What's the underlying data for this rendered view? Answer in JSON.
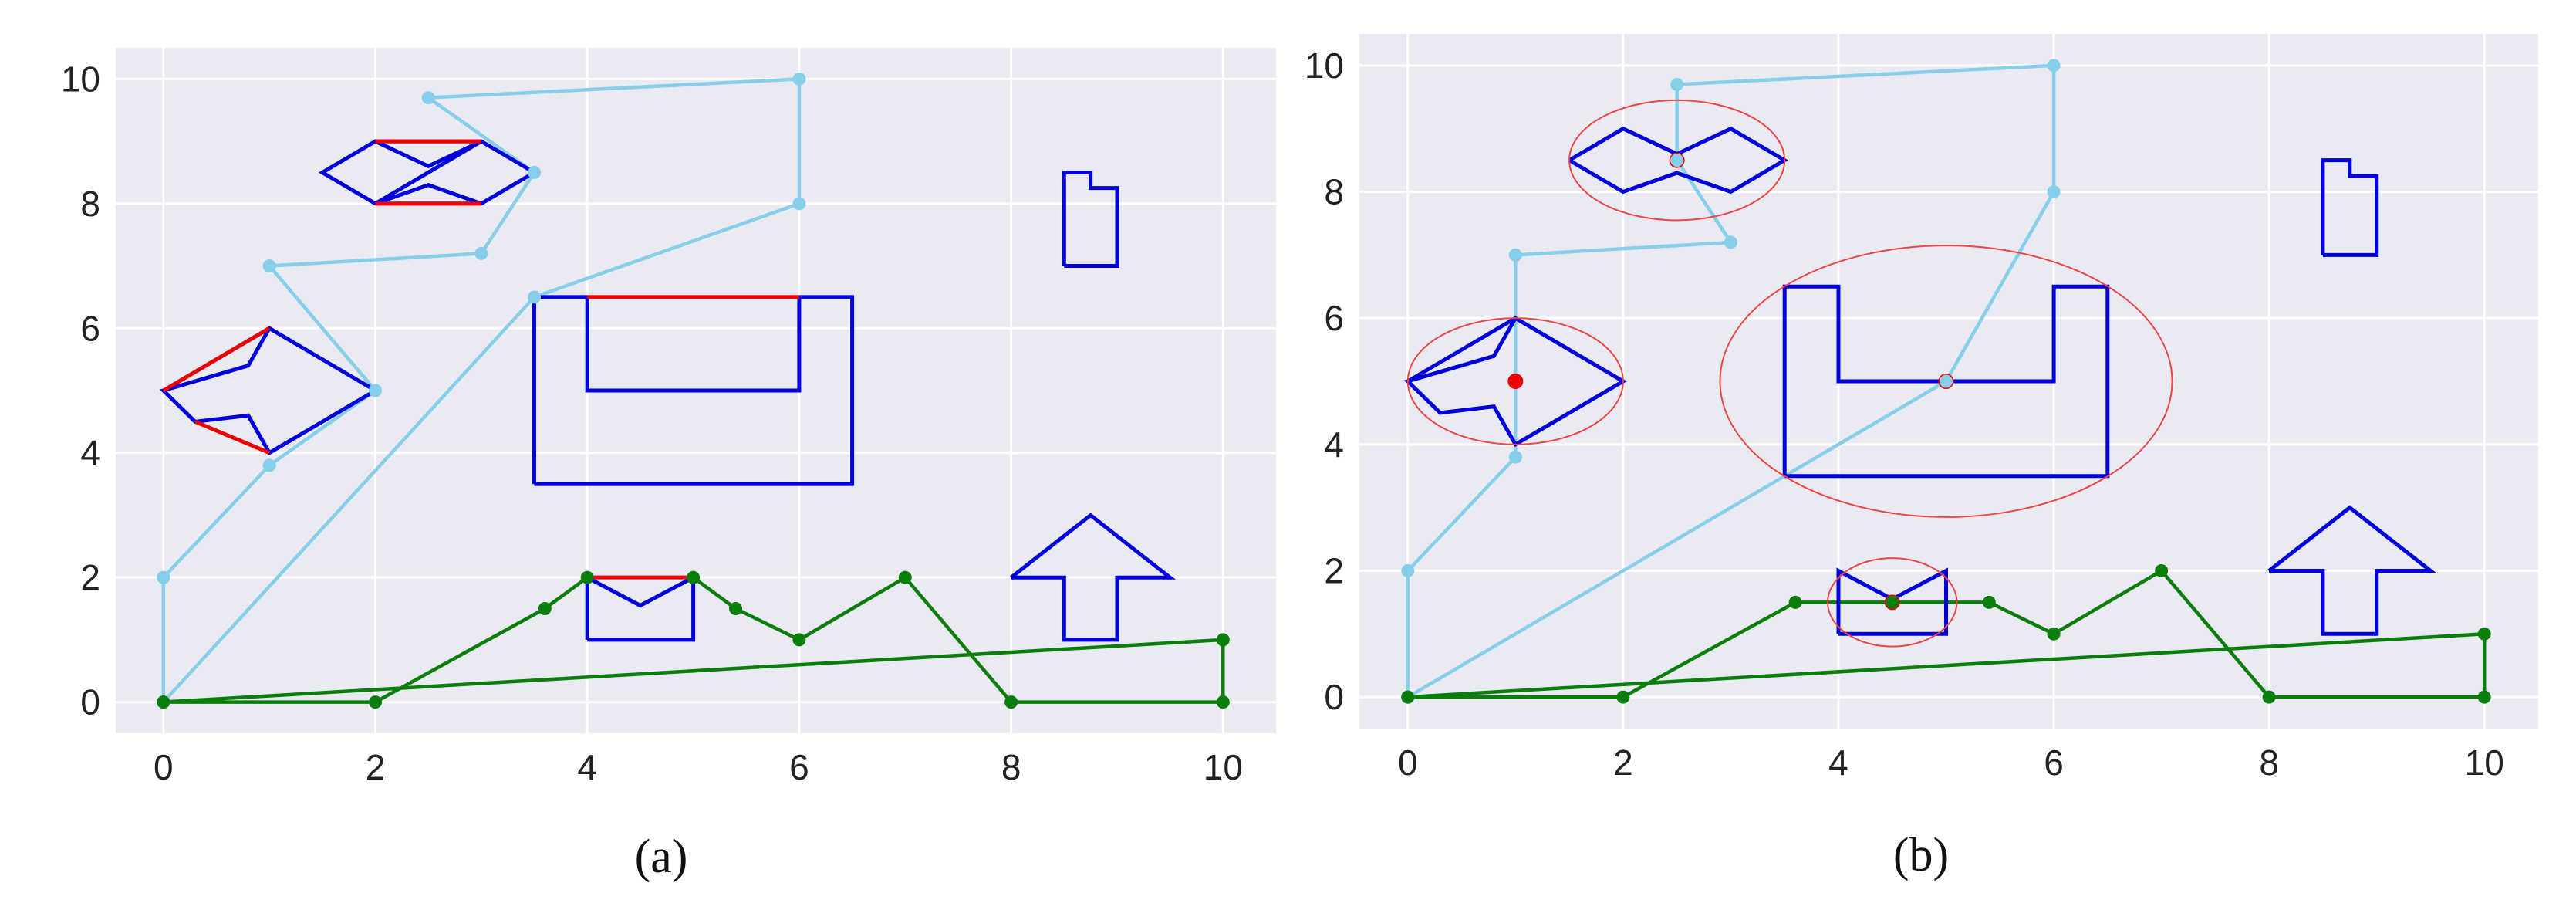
{
  "colors": {
    "plot_bg": "#eaeaf2",
    "grid": "#ffffff",
    "path_upper": "#87ceeb",
    "path_lower": "#0a7d0a",
    "obstacle": "#0000dd",
    "edge_highlight": "#ee0000",
    "ellipse": "#ee4444",
    "center": "#ee0000"
  },
  "chart_data": [
    {
      "type": "line",
      "caption": "(a)",
      "xlim": [
        -0.45,
        10.5
      ],
      "ylim": [
        -0.5,
        10.5
      ],
      "xticks": [
        "0",
        "2",
        "4",
        "6",
        "8",
        "10"
      ],
      "yticks": [
        "0",
        "2",
        "4",
        "6",
        "8",
        "10"
      ],
      "grid": true,
      "series": [
        {
          "color_key": "path_upper",
          "points": [
            [
              0,
              0
            ],
            [
              0,
              2
            ],
            [
              1,
              3.8
            ],
            [
              2,
              5
            ],
            [
              1,
              7
            ],
            [
              3,
              7.2
            ],
            [
              3.5,
              8.5
            ],
            [
              2.5,
              9.7
            ],
            [
              6,
              10
            ],
            [
              6,
              8
            ],
            [
              3.5,
              6.5
            ],
            [
              0,
              0
            ]
          ]
        },
        {
          "color_key": "path_lower",
          "points": [
            [
              0,
              0
            ],
            [
              2,
              0
            ],
            [
              3.6,
              1.5
            ],
            [
              4,
              2
            ],
            [
              5,
              2
            ],
            [
              5.4,
              1.5
            ],
            [
              6,
              1
            ],
            [
              7,
              2
            ],
            [
              8,
              0
            ],
            [
              10,
              0
            ],
            [
              10,
              1
            ],
            [
              0,
              0
            ]
          ]
        }
      ],
      "obstacles": [
        {
          "color_key": "obstacle",
          "points": [
            [
              1.5,
              8.5
            ],
            [
              2,
              9
            ],
            [
              3,
              9
            ],
            [
              3.5,
              8.5
            ],
            [
              3,
              8
            ],
            [
              2,
              8
            ],
            [
              1.5,
              8.5
            ],
            [
              2,
              9
            ],
            [
              2.5,
              8.6
            ],
            [
              3,
              9
            ],
            [
              2,
              8
            ],
            [
              2.5,
              8.3
            ],
            [
              3,
              8
            ]
          ]
        },
        {
          "color_key": "obstacle",
          "points": [
            [
              0,
              5
            ],
            [
              1,
              6
            ],
            [
              2,
              5
            ],
            [
              1,
              4
            ],
            [
              0.8,
              4.6
            ],
            [
              0.3,
              4.5
            ],
            [
              0,
              5
            ],
            [
              0.8,
              5.4
            ],
            [
              1,
              6
            ]
          ]
        },
        {
          "color_key": "obstacle",
          "points": [
            [
              3.5,
              3.5
            ],
            [
              6.5,
              3.5
            ],
            [
              6.5,
              6.5
            ],
            [
              6,
              6.5
            ],
            [
              6,
              5
            ],
            [
              4,
              5
            ],
            [
              4,
              6.5
            ],
            [
              3.5,
              6.5
            ],
            [
              3.5,
              3.5
            ]
          ]
        },
        {
          "color_key": "obstacle",
          "points": [
            [
              4,
              1
            ],
            [
              5,
              1
            ],
            [
              5,
              2
            ],
            [
              4.5,
              1.55
            ],
            [
              4,
              2
            ],
            [
              4,
              1
            ]
          ]
        },
        {
          "color_key": "obstacle",
          "points": [
            [
              8.5,
              7
            ],
            [
              9,
              7
            ],
            [
              9,
              8.25
            ],
            [
              8.75,
              8.25
            ],
            [
              8.75,
              8.5
            ],
            [
              8.5,
              8.5
            ],
            [
              8.5,
              7
            ]
          ]
        },
        {
          "color_key": "obstacle",
          "points": [
            [
              8,
              2
            ],
            [
              8.75,
              3
            ],
            [
              9.5,
              2
            ],
            [
              9,
              2
            ],
            [
              9,
              1
            ],
            [
              8.5,
              1
            ],
            [
              8.5,
              2
            ],
            [
              8,
              2
            ]
          ]
        }
      ],
      "highlight_edges": [
        [
          [
            2,
            9
          ],
          [
            3,
            9
          ]
        ],
        [
          [
            2,
            8
          ],
          [
            3,
            8
          ]
        ],
        [
          [
            0,
            5
          ],
          [
            1,
            6
          ]
        ],
        [
          [
            0.3,
            4.5
          ],
          [
            1,
            4
          ]
        ],
        [
          [
            4,
            6.5
          ],
          [
            6,
            6.5
          ]
        ],
        [
          [
            4,
            2
          ],
          [
            5,
            2
          ]
        ]
      ]
    },
    {
      "type": "line",
      "caption": "(b)",
      "xlim": [
        -0.45,
        10.5
      ],
      "ylim": [
        -0.5,
        10.5
      ],
      "xticks": [
        "0",
        "2",
        "4",
        "6",
        "8",
        "10"
      ],
      "yticks": [
        "0",
        "2",
        "4",
        "6",
        "8",
        "10"
      ],
      "grid": true,
      "series": [
        {
          "color_key": "path_upper",
          "points": [
            [
              0,
              0
            ],
            [
              0,
              2
            ],
            [
              1,
              3.8
            ],
            [
              1,
              7
            ],
            [
              3,
              7.2
            ],
            [
              2.5,
              8.5
            ],
            [
              2.5,
              9.7
            ],
            [
              6,
              10
            ],
            [
              6,
              8
            ],
            [
              5,
              5
            ],
            [
              0,
              0
            ]
          ]
        },
        {
          "color_key": "path_lower",
          "points": [
            [
              0,
              0
            ],
            [
              2,
              0
            ],
            [
              3.6,
              1.5
            ],
            [
              4.5,
              1.5
            ],
            [
              5.4,
              1.5
            ],
            [
              6,
              1
            ],
            [
              7,
              2
            ],
            [
              8,
              0
            ],
            [
              10,
              0
            ],
            [
              10,
              1
            ],
            [
              0,
              0
            ]
          ]
        }
      ],
      "obstacles": [
        {
          "color_key": "obstacle",
          "points": [
            [
              1.5,
              8.5
            ],
            [
              2,
              9
            ],
            [
              2.5,
              8.6
            ],
            [
              3,
              9
            ],
            [
              3.5,
              8.5
            ],
            [
              3,
              8
            ],
            [
              2.5,
              8.3
            ],
            [
              2,
              8
            ],
            [
              1.5,
              8.5
            ]
          ]
        },
        {
          "color_key": "obstacle",
          "points": [
            [
              0,
              5
            ],
            [
              1,
              6
            ],
            [
              2,
              5
            ],
            [
              1,
              4
            ],
            [
              0.8,
              4.6
            ],
            [
              0.3,
              4.5
            ],
            [
              0,
              5
            ],
            [
              0.8,
              5.4
            ],
            [
              1,
              6
            ]
          ]
        },
        {
          "color_key": "obstacle",
          "points": [
            [
              3.5,
              3.5
            ],
            [
              6.5,
              3.5
            ],
            [
              6.5,
              6.5
            ],
            [
              6,
              6.5
            ],
            [
              6,
              5
            ],
            [
              4,
              5
            ],
            [
              4,
              6.5
            ],
            [
              3.5,
              6.5
            ],
            [
              3.5,
              3.5
            ]
          ]
        },
        {
          "color_key": "obstacle",
          "points": [
            [
              4,
              1
            ],
            [
              5,
              1
            ],
            [
              5,
              2
            ],
            [
              4.5,
              1.55
            ],
            [
              4,
              2
            ],
            [
              4,
              1
            ]
          ]
        },
        {
          "color_key": "obstacle",
          "points": [
            [
              8.5,
              7
            ],
            [
              9,
              7
            ],
            [
              9,
              8.25
            ],
            [
              8.75,
              8.25
            ],
            [
              8.75,
              8.5
            ],
            [
              8.5,
              8.5
            ],
            [
              8.5,
              7
            ]
          ]
        },
        {
          "color_key": "obstacle",
          "points": [
            [
              8,
              2
            ],
            [
              8.75,
              3
            ],
            [
              9.5,
              2
            ],
            [
              9,
              2
            ],
            [
              9,
              1
            ],
            [
              8.5,
              1
            ],
            [
              8.5,
              2
            ],
            [
              8,
              2
            ]
          ]
        }
      ],
      "ellipses": [
        {
          "cx": 2.5,
          "cy": 8.5,
          "rx": 1.0,
          "ry": 0.95
        },
        {
          "cx": 1.0,
          "cy": 5.0,
          "rx": 1.0,
          "ry": 1.0
        },
        {
          "cx": 5.0,
          "cy": 5.0,
          "rx": 2.1,
          "ry": 2.15
        },
        {
          "cx": 4.5,
          "cy": 1.5,
          "rx": 0.6,
          "ry": 0.7
        }
      ],
      "centers": [
        [
          2.5,
          8.5
        ],
        [
          1,
          5
        ],
        [
          5,
          5
        ],
        [
          4.5,
          1.5
        ]
      ]
    }
  ]
}
